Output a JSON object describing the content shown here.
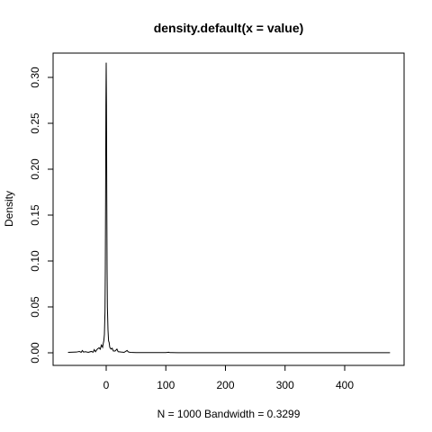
{
  "chart_data": {
    "type": "line",
    "title": "density.default(x = value)",
    "xlabel": "N = 1000   Bandwidth = 0.3299",
    "ylabel": "Density",
    "xlim": [
      -60,
      480
    ],
    "ylim": [
      0,
      0.32
    ],
    "x_ticks": [
      0,
      100,
      200,
      300,
      400
    ],
    "y_ticks": [
      0.0,
      0.05,
      0.1,
      0.15,
      0.2,
      0.25,
      0.3
    ],
    "y_tick_labels": [
      "0.00",
      "0.05",
      "0.10",
      "0.15",
      "0.20",
      "0.25",
      "0.30"
    ],
    "grid": false,
    "legend": "none",
    "series": [
      {
        "x": [
          -64,
          -50,
          -45,
          -42,
          -40,
          -38,
          -35,
          -30,
          -25,
          -22,
          -20,
          -18,
          -15,
          -12,
          -10,
          -8,
          -6,
          -5,
          -4,
          -3,
          -2,
          -1.5,
          -1,
          -0.5,
          0,
          0.5,
          1,
          1.5,
          2,
          3,
          4,
          5,
          6,
          8,
          10,
          12,
          15,
          18,
          20,
          25,
          30,
          35,
          37,
          40,
          50,
          60,
          80,
          100,
          105,
          107,
          110,
          120,
          150,
          200,
          250,
          300,
          350,
          400,
          450,
          476
        ],
        "y": [
          0.0005,
          0.0008,
          0.0015,
          0.0005,
          0.0025,
          0.0008,
          0.0012,
          0.0005,
          0.0015,
          0.0006,
          0.0035,
          0.0012,
          0.004,
          0.0055,
          0.004,
          0.0085,
          0.006,
          0.01,
          0.013,
          0.02,
          0.045,
          0.09,
          0.17,
          0.27,
          0.316,
          0.27,
          0.17,
          0.09,
          0.05,
          0.025,
          0.013,
          0.011,
          0.006,
          0.004,
          0.005,
          0.002,
          0.002,
          0.004,
          0.0012,
          0.0008,
          0.0005,
          0.0025,
          0.001,
          0.0005,
          0.0003,
          0.0002,
          0.0002,
          0.0002,
          0.0006,
          0.0002,
          0.0002,
          0.0001,
          0.0001,
          0.0001,
          0.0001,
          0.0001,
          0.0001,
          0.0001,
          0.0001,
          0.0001
        ]
      }
    ]
  }
}
